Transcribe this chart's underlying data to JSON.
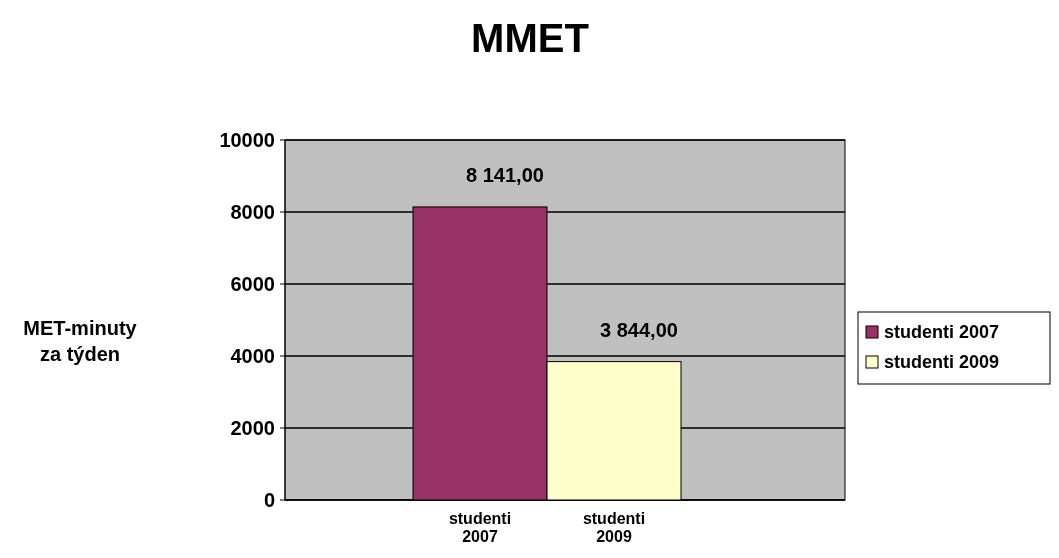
{
  "chart_data": {
    "type": "bar",
    "title": "MMET",
    "ylabel": "MET-minuty za týden",
    "categories": [
      "studenti 2007",
      "studenti 2009"
    ],
    "stacked": true,
    "series": [
      {
        "name": "studenti 2007",
        "color": "#993366",
        "values": [
          8141,
          null
        ],
        "value_labels": [
          "8 141,00",
          null
        ]
      },
      {
        "name": "studenti 2009",
        "color": "#ffffcc",
        "values": [
          null,
          3844
        ],
        "value_labels": [
          null,
          "3 844,00"
        ]
      }
    ],
    "ylim": [
      0,
      10000
    ],
    "yticks": [
      0,
      2000,
      4000,
      6000,
      8000,
      10000
    ],
    "grid": "y",
    "legend": "right"
  }
}
